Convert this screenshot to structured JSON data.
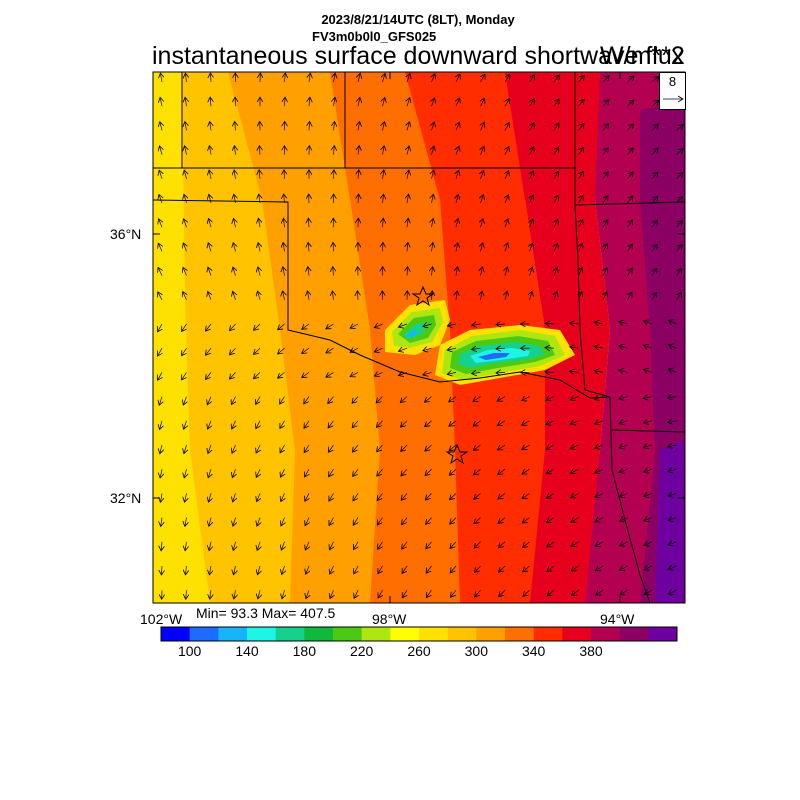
{
  "header": {
    "datetime": "2023/8/21/14UTC (8LT), Monday",
    "model": "FV3m0b0l0_GFS025",
    "title": "instantaneous surface downward shortwave flux",
    "units": "W/m**2"
  },
  "map": {
    "lat_labels": [
      "36°N",
      "32°N"
    ],
    "lon_labels": [
      "102°W",
      "98°W",
      "94°W"
    ],
    "stats": "Min= 93.3 Max= 407.5",
    "vector_reference": "8",
    "markers": [
      "star",
      "star"
    ]
  },
  "colorbar": {
    "colors": [
      "#0000ff",
      "#1e6bff",
      "#17b4f7",
      "#1ef5e6",
      "#14d28c",
      "#10b83c",
      "#4bc914",
      "#aee612",
      "#ffff00",
      "#ffe100",
      "#ffc300",
      "#ffa000",
      "#ff6e00",
      "#ff2d00",
      "#e6001e",
      "#b40050",
      "#8c0064",
      "#6e00a0"
    ],
    "tick_labels": [
      "100",
      "140",
      "180",
      "220",
      "260",
      "300",
      "340",
      "380"
    ],
    "ticks": [
      100,
      140,
      180,
      220,
      260,
      300,
      340,
      380
    ]
  }
}
